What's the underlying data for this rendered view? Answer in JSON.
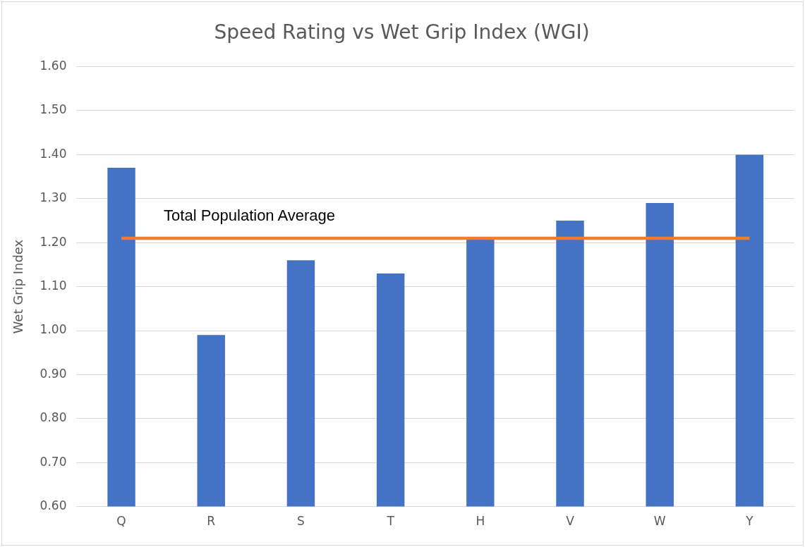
{
  "chart_data": {
    "type": "bar",
    "title": "Speed Rating vs Wet Grip Index (WGI)",
    "ylabel": "Wet Grip Index",
    "categories": [
      "Q",
      "R",
      "S",
      "T",
      "H",
      "V",
      "W",
      "Y"
    ],
    "series": [
      {
        "color": "#4472c4",
        "values": [
          1.37,
          0.99,
          1.16,
          1.13,
          1.21,
          1.25,
          1.29,
          1.4
        ]
      },
      {
        "type": "line",
        "name": "Total Population Average",
        "color": "#ed7d31",
        "values": [
          1.21,
          1.21,
          1.21,
          1.21,
          1.21,
          1.21,
          1.21,
          1.21
        ]
      }
    ],
    "ylim": [
      0.6,
      1.6
    ],
    "yticks": [
      {
        "value": 0.6,
        "label": "0.60"
      },
      {
        "value": 0.7,
        "label": "0.70"
      },
      {
        "value": 0.8,
        "label": "0.80"
      },
      {
        "value": 0.9,
        "label": "0.90"
      },
      {
        "value": 1.0,
        "label": "1.00"
      },
      {
        "value": 1.1,
        "label": "1.10"
      },
      {
        "value": 1.2,
        "label": "1.20"
      },
      {
        "value": 1.3,
        "label": "1.30"
      },
      {
        "value": 1.4,
        "label": "1.40"
      },
      {
        "value": 1.5,
        "label": "1.50"
      },
      {
        "value": 1.6,
        "label": "1.60"
      }
    ],
    "grid": "y",
    "legend": false,
    "marker": "none"
  }
}
